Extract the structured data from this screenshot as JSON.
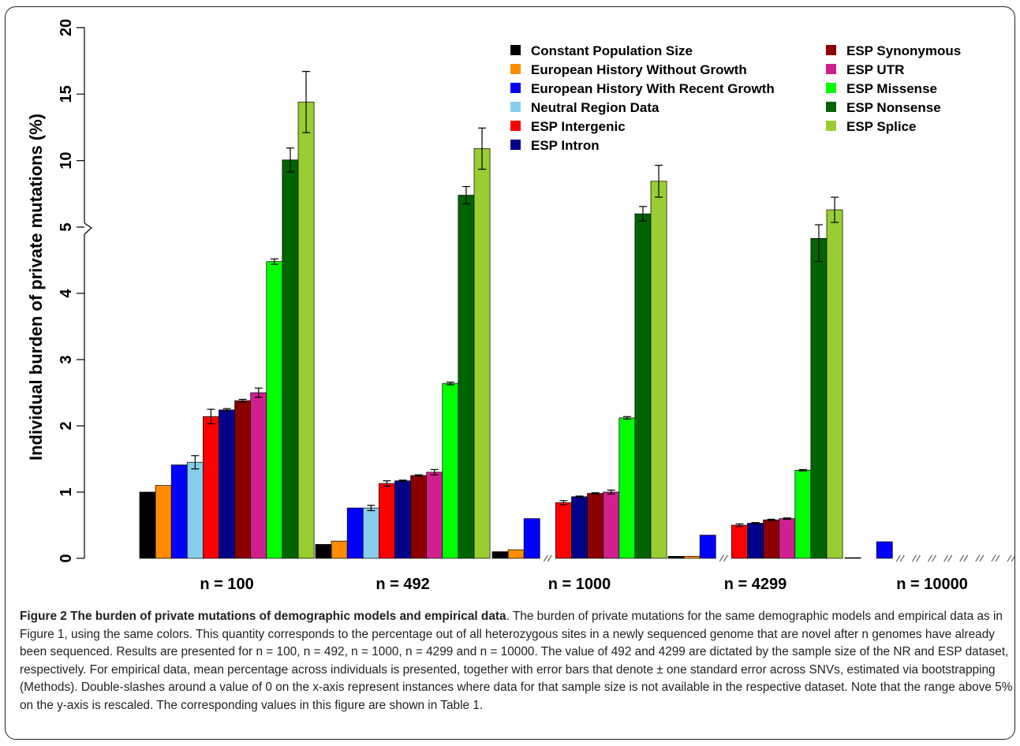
{
  "chart_data": {
    "type": "bar",
    "ylabel": "Individual burden of private mutations (%)",
    "y_ticks_lower": [
      "0",
      "1",
      "2",
      "3",
      "4",
      "5"
    ],
    "y_ticks_upper": [
      "5",
      "10",
      "15",
      "20"
    ],
    "y_scale": "linear 0-5, rescaled above 5 (axis break at 5)",
    "ylim_lower": [
      0,
      5
    ],
    "ylim_upper": [
      5,
      20
    ],
    "categories": [
      "n = 100",
      "n = 492",
      "n = 1000",
      "n = 4299",
      "n = 10000"
    ],
    "missing_marker": "double-slash at 0 indicates data not available",
    "legend_position": "top-right",
    "series": [
      {
        "name": "Constant Population Size",
        "color": "#000000",
        "values": [
          1.0,
          0.21,
          0.1,
          0.03,
          0.01
        ],
        "errors": [
          0,
          0,
          0,
          0,
          0
        ]
      },
      {
        "name": "European History Without Growth",
        "color": "#FF8C00",
        "values": [
          1.1,
          0.26,
          0.13,
          0.03,
          null
        ],
        "errors": [
          0,
          0,
          0,
          0,
          0
        ]
      },
      {
        "name": "European History With Recent Growth",
        "color": "#0000FF",
        "values": [
          1.41,
          0.76,
          0.6,
          0.35,
          0.25
        ],
        "errors": [
          0,
          0,
          0,
          0,
          0
        ]
      },
      {
        "name": "Neutral Region Data",
        "color": "#87CEEB",
        "values": [
          1.45,
          0.76,
          null,
          null,
          null
        ],
        "errors": [
          0.1,
          0.04,
          0,
          0,
          0
        ]
      },
      {
        "name": "ESP Intergenic",
        "color": "#FF0000",
        "values": [
          2.14,
          1.13,
          0.84,
          0.5,
          null
        ],
        "errors": [
          0.11,
          0.04,
          0.03,
          0.02,
          0
        ]
      },
      {
        "name": "ESP Intron",
        "color": "#00008B",
        "values": [
          2.24,
          1.17,
          0.93,
          0.53,
          null
        ],
        "errors": [
          0.02,
          0.01,
          0.01,
          0.01,
          0
        ]
      },
      {
        "name": "ESP Synonymous",
        "color": "#8B0000",
        "values": [
          2.38,
          1.25,
          0.98,
          0.58,
          null
        ],
        "errors": [
          0.02,
          0.01,
          0.01,
          0.01,
          0
        ]
      },
      {
        "name": "ESP UTR",
        "color": "#D02090",
        "values": [
          2.5,
          1.3,
          1.0,
          0.6,
          null
        ],
        "errors": [
          0.07,
          0.04,
          0.03,
          0.01,
          0
        ]
      },
      {
        "name": "ESP Missense",
        "color": "#00FF00",
        "values": [
          4.48,
          2.64,
          2.12,
          1.33,
          null
        ],
        "errors": [
          0.04,
          0.02,
          0.02,
          0.01,
          0
        ]
      },
      {
        "name": "ESP Nonsense",
        "color": "#006400",
        "values": [
          10.05,
          7.4,
          6.0,
          4.83,
          null
        ],
        "errors": [
          0.9,
          0.65,
          0.55,
          0.35,
          0
        ]
      },
      {
        "name": "ESP Splice",
        "color": "#9ACD32",
        "values": [
          14.4,
          10.9,
          8.45,
          6.3,
          null
        ],
        "errors": [
          2.3,
          1.55,
          1.2,
          0.95,
          0
        ]
      }
    ]
  },
  "caption": {
    "title": "Figure 2 The burden of private mutations of demographic models and empirical data",
    "body": ". The burden of private mutations for the same demographic models and empirical data as in Figure 1, using the same colors. This quantity corresponds to the percentage out of all heterozygous sites in a newly sequenced genome that are novel after n genomes have already been sequenced. Results are presented for n = 100, n = 492, n = 1000, n = 4299 and n = 10000. The value of 492 and 4299 are dictated by the sample size of the NR and ESP dataset, respectively. For empirical data, mean percentage across individuals is presented, together with error bars that denote ± one standard error across SNVs, estimated via bootstrapping (Methods). Double-slashes around a value of 0 on the x-axis represent instances where data for that sample size is not available in the respective dataset. Note that the range above 5% on the y-axis is rescaled. The corresponding values in this figure are shown in Table 1."
  }
}
